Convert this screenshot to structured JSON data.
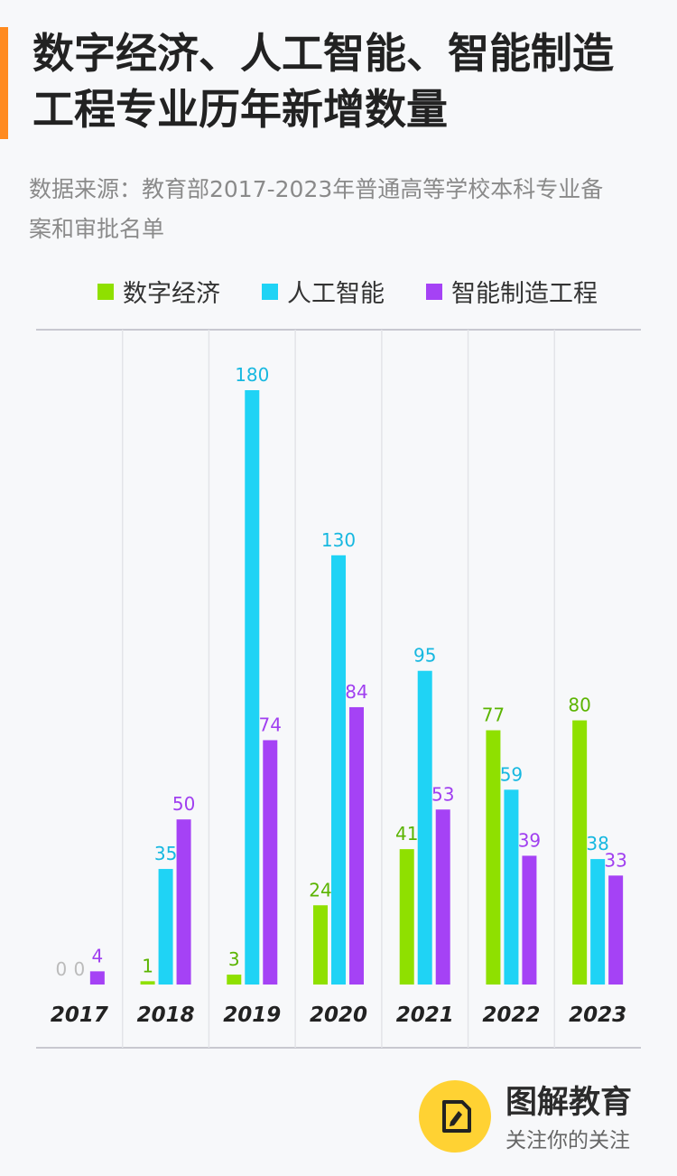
{
  "header": {
    "title_line1": "数字经济、人工智能、智能制造",
    "title_line2": "工程专业历年新增数量",
    "source_line1": "数据来源：教育部2017-2023年普通高等学校本科专业备",
    "source_line2": "案和审批名单"
  },
  "legend": [
    {
      "label": "数字经济",
      "color": "#8fe000"
    },
    {
      "label": "人工智能",
      "color": "#1fd3f5"
    },
    {
      "label": "智能制造工程",
      "color": "#a542f5"
    }
  ],
  "colors": {
    "accent": "#ff8a1f",
    "label_green": "#5bb400",
    "label_cyan": "#17b8e0",
    "label_purple": "#a03ff0",
    "brand_yellow": "#ffd233"
  },
  "chart_data": {
    "type": "bar",
    "categories": [
      "2017",
      "2018",
      "2019",
      "2020",
      "2021",
      "2022",
      "2023"
    ],
    "series": [
      {
        "name": "数字经济",
        "values": [
          0,
          1,
          3,
          24,
          41,
          77,
          80
        ]
      },
      {
        "name": "人工智能",
        "values": [
          0,
          35,
          180,
          130,
          95,
          59,
          38
        ]
      },
      {
        "name": "智能制造工程",
        "values": [
          4,
          50,
          74,
          84,
          53,
          39,
          33
        ]
      }
    ],
    "ylim": [
      0,
      180
    ],
    "grid": "vertical"
  },
  "footer": {
    "brand": "图解教育",
    "slogan": "关注你的关注",
    "logo_icon": "document-edit-icon"
  }
}
